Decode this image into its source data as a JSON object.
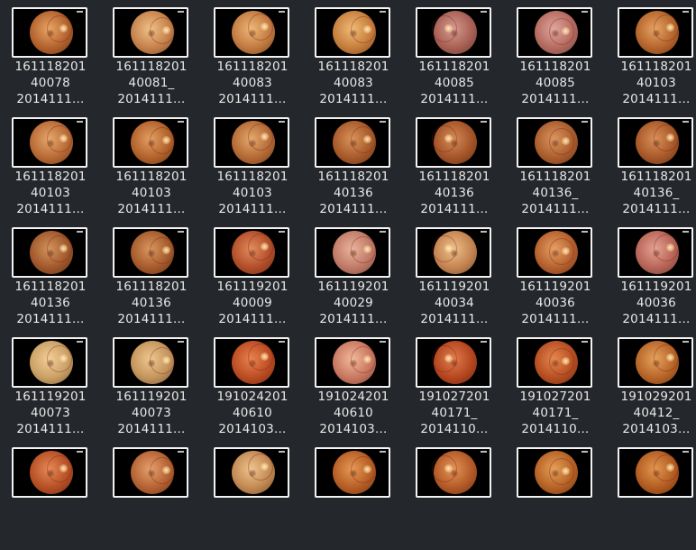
{
  "files": [
    {
      "lines": [
        "161118201",
        "40078",
        "2014111…"
      ],
      "tone": [
        "#e9a566",
        "#b3622e",
        "#6e3417"
      ]
    },
    {
      "lines": [
        "161118201",
        "40081_",
        "2014111…"
      ],
      "tone": [
        "#f0c189",
        "#c6824c",
        "#7b4a26"
      ]
    },
    {
      "lines": [
        "161118201",
        "40083",
        "2014111…"
      ],
      "tone": [
        "#eeb878",
        "#c27a41",
        "#7a4520"
      ]
    },
    {
      "lines": [
        "161118201",
        "40083",
        "2014111…"
      ],
      "tone": [
        "#f0bb76",
        "#c77e3d",
        "#7e471d"
      ]
    },
    {
      "lines": [
        "161118201",
        "40085",
        "2014111…"
      ],
      "tone": [
        "#d79c92",
        "#a86054",
        "#6a3a33"
      ]
    },
    {
      "lines": [
        "161118201",
        "40085",
        "2014111…"
      ],
      "tone": [
        "#e0a7a0",
        "#b56b5f",
        "#72423c"
      ]
    },
    {
      "lines": [
        "161118201",
        "40103",
        "2014111…"
      ],
      "tone": [
        "#e6a463",
        "#b5652d",
        "#703817"
      ]
    },
    {
      "lines": [
        "161118201",
        "40103",
        "2014111…"
      ],
      "tone": [
        "#e6a86c",
        "#b86a35",
        "#713b1a"
      ]
    },
    {
      "lines": [
        "161118201",
        "40103",
        "2014111…"
      ],
      "tone": [
        "#e3a062",
        "#b2622c",
        "#6e3616"
      ]
    },
    {
      "lines": [
        "161118201",
        "40103",
        "2014111…"
      ],
      "tone": [
        "#e5a96d",
        "#b46a36",
        "#6f3b1b"
      ]
    },
    {
      "lines": [
        "161118201",
        "40136",
        "2014111…"
      ],
      "tone": [
        "#d9935b",
        "#a85a2a",
        "#663216"
      ]
    },
    {
      "lines": [
        "161118201",
        "40136",
        "2014111…"
      ],
      "tone": [
        "#d58c58",
        "#a45428",
        "#613015"
      ]
    },
    {
      "lines": [
        "161118201",
        "40136_",
        "2014111…"
      ],
      "tone": [
        "#dc9660",
        "#ab5d2d",
        "#683418"
      ]
    },
    {
      "lines": [
        "161118201",
        "40136_",
        "2014111…"
      ],
      "tone": [
        "#d99159",
        "#a85829",
        "#653116"
      ]
    },
    {
      "lines": [
        "161118201",
        "40136",
        "2014111…"
      ],
      "tone": [
        "#d3945e",
        "#a1582b",
        "#5e3116"
      ]
    },
    {
      "lines": [
        "161118201",
        "40136",
        "2014111…"
      ],
      "tone": [
        "#d9975f",
        "#a65b2c",
        "#633217"
      ]
    },
    {
      "lines": [
        "161119201",
        "40009",
        "2014111…"
      ],
      "tone": [
        "#e38c5c",
        "#b24e2a",
        "#6d2a15"
      ]
    },
    {
      "lines": [
        "161119201",
        "40029",
        "2014111…"
      ],
      "tone": [
        "#eab49e",
        "#c07a66",
        "#7a4a40"
      ]
    },
    {
      "lines": [
        "161119201",
        "40034",
        "2014111…"
      ],
      "tone": [
        "#eec08a",
        "#c48452",
        "#7a4c2c"
      ]
    },
    {
      "lines": [
        "161119201",
        "40036",
        "2014111…"
      ],
      "tone": [
        "#e7a064",
        "#b5602e",
        "#6f3517"
      ]
    },
    {
      "lines": [
        "161119201",
        "40036",
        "2014111…"
      ],
      "tone": [
        "#e5a394",
        "#b86558",
        "#713a33"
      ]
    },
    {
      "lines": [
        "161119201",
        "40073",
        "2014111…"
      ],
      "tone": [
        "#f3cf98",
        "#caa066",
        "#7c5d3a"
      ]
    },
    {
      "lines": [
        "161119201",
        "40073",
        "2014111…"
      ],
      "tone": [
        "#efc790",
        "#c4955d",
        "#785634"
      ]
    },
    {
      "lines": [
        "191024201",
        "40610",
        "2014103…"
      ],
      "tone": [
        "#e9834f",
        "#bb4c22",
        "#742912"
      ]
    },
    {
      "lines": [
        "191024201",
        "40610",
        "2014103…"
      ],
      "tone": [
        "#f2b99a",
        "#c97860",
        "#7e453a"
      ]
    },
    {
      "lines": [
        "191027201",
        "40171_",
        "2014110…"
      ],
      "tone": [
        "#e27e4e",
        "#b44620",
        "#6e2611"
      ]
    },
    {
      "lines": [
        "191027201",
        "40171_",
        "2014110…"
      ],
      "tone": [
        "#e5884f",
        "#b64f22",
        "#702b12"
      ]
    },
    {
      "lines": [
        "191029201",
        "40412_",
        "2014103…"
      ],
      "tone": [
        "#e6a35d",
        "#b76529",
        "#703914"
      ]
    },
    {
      "lines": [
        "",
        "",
        ""
      ],
      "tone": [
        "#e58a55",
        "#b65026",
        "#702c14"
      ]
    },
    {
      "lines": [
        "",
        "",
        ""
      ],
      "tone": [
        "#e6a06f",
        "#b56233",
        "#70361c"
      ]
    },
    {
      "lines": [
        "",
        "",
        ""
      ],
      "tone": [
        "#efc48f",
        "#c38953",
        "#78502c"
      ]
    },
    {
      "lines": [
        "",
        "",
        ""
      ],
      "tone": [
        "#e69a55",
        "#b65e25",
        "#703414"
      ]
    },
    {
      "lines": [
        "",
        "",
        ""
      ],
      "tone": [
        "#e49558",
        "#b35a27",
        "#6e3215"
      ]
    },
    {
      "lines": [
        "",
        "",
        ""
      ],
      "tone": [
        "#e6a059",
        "#b66226",
        "#703714"
      ]
    },
    {
      "lines": [
        "",
        "",
        ""
      ],
      "tone": [
        "#e3984f",
        "#b35c22",
        "#6e3312"
      ]
    }
  ]
}
